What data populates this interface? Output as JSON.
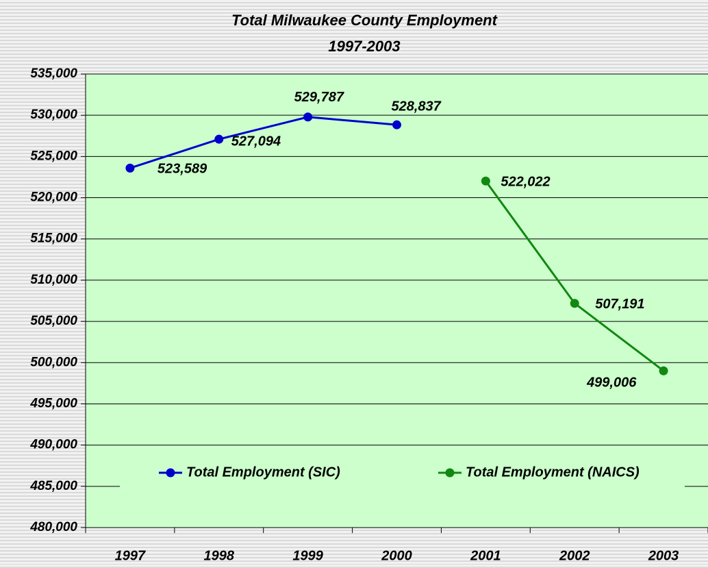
{
  "chart_data": {
    "type": "line",
    "title": "Total Milwaukee County Employment",
    "subtitle": "1997-2003",
    "categories": [
      "1997",
      "1998",
      "1999",
      "2000",
      "2001",
      "2002",
      "2003"
    ],
    "series": [
      {
        "name": "Total Employment (SIC)",
        "color": "#0000cc",
        "values": [
          523589,
          527094,
          529787,
          528837,
          null,
          null,
          null
        ],
        "value_labels": [
          "523,589",
          "527,094",
          "529,787",
          "528,837",
          null,
          null,
          null
        ]
      },
      {
        "name": "Total Employment (NAICS)",
        "color": "#118811",
        "values": [
          null,
          null,
          null,
          null,
          522022,
          507191,
          499006
        ],
        "value_labels": [
          null,
          null,
          null,
          null,
          "522,022",
          "507,191",
          "499,006"
        ]
      }
    ],
    "ylim": [
      480000,
      535000
    ],
    "yticks": [
      {
        "value": 480000,
        "label": "480,000"
      },
      {
        "value": 485000,
        "label": "485,000"
      },
      {
        "value": 490000,
        "label": "490,000"
      },
      {
        "value": 495000,
        "label": "495,000"
      },
      {
        "value": 500000,
        "label": "500,000"
      },
      {
        "value": 505000,
        "label": "505,000"
      },
      {
        "value": 510000,
        "label": "510,000"
      },
      {
        "value": 515000,
        "label": "515,000"
      },
      {
        "value": 520000,
        "label": "520,000"
      },
      {
        "value": 525000,
        "label": "525,000"
      },
      {
        "value": 530000,
        "label": "530,000"
      },
      {
        "value": 535000,
        "label": "535,000"
      }
    ],
    "grid": true,
    "legend": "bottom"
  }
}
